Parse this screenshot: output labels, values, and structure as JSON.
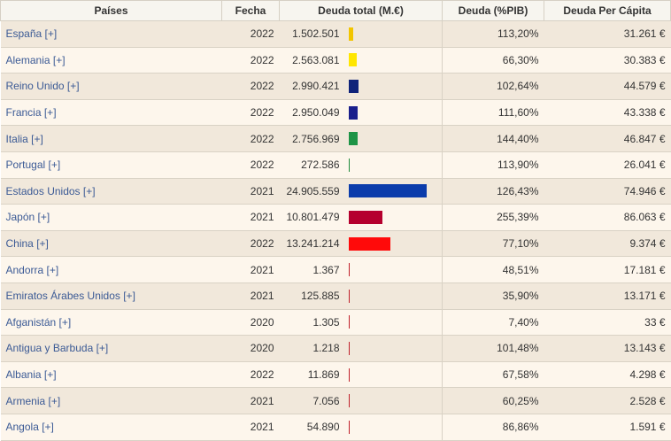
{
  "table": {
    "headers": [
      "Países",
      "Fecha",
      "Deuda total (M.€)",
      "Deuda (%PIB)",
      "Deuda Per Cápita"
    ],
    "max_debt": 24905.559,
    "rows": [
      {
        "country": "España [+]",
        "year": "2022",
        "debt": "1.502.501",
        "debt_value": 1502.501,
        "bar_color": "#f2c500",
        "gdp_pct": "113,20%",
        "per_capita": "31.261 €"
      },
      {
        "country": "Alemania [+]",
        "year": "2022",
        "debt": "2.563.081",
        "debt_value": 2563.081,
        "bar_color": "#ffe600",
        "gdp_pct": "66,30%",
        "per_capita": "30.383 €"
      },
      {
        "country": "Reino Unido [+]",
        "year": "2022",
        "debt": "2.990.421",
        "debt_value": 2990.421,
        "bar_color": "#0f237a",
        "gdp_pct": "102,64%",
        "per_capita": "44.579 €"
      },
      {
        "country": "Francia [+]",
        "year": "2022",
        "debt": "2.950.049",
        "debt_value": 2950.049,
        "bar_color": "#1a1f8c",
        "gdp_pct": "111,60%",
        "per_capita": "43.338 €"
      },
      {
        "country": "Italia [+]",
        "year": "2022",
        "debt": "2.756.969",
        "debt_value": 2756.969,
        "bar_color": "#1e9446",
        "gdp_pct": "144,40%",
        "per_capita": "46.847 €"
      },
      {
        "country": "Portugal [+]",
        "year": "2022",
        "debt": "272.586",
        "debt_value": 272.586,
        "bar_color": "#1e8a3a",
        "gdp_pct": "113,90%",
        "per_capita": "26.041 €"
      },
      {
        "country": "Estados Unidos [+]",
        "year": "2021",
        "debt": "24.905.559",
        "debt_value": 24905.559,
        "bar_color": "#0b3cab",
        "gdp_pct": "126,43%",
        "per_capita": "74.946 €"
      },
      {
        "country": "Japón [+]",
        "year": "2021",
        "debt": "10.801.479",
        "debt_value": 10801.479,
        "bar_color": "#b5002e",
        "gdp_pct": "255,39%",
        "per_capita": "86.063 €"
      },
      {
        "country": "China [+]",
        "year": "2022",
        "debt": "13.241.214",
        "debt_value": 13241.214,
        "bar_color": "#ff0a0a",
        "gdp_pct": "77,10%",
        "per_capita": "9.374 €"
      },
      {
        "country": "Andorra [+]",
        "year": "2021",
        "debt": "1.367",
        "debt_value": 1.367,
        "bar_color": "#c0202a",
        "gdp_pct": "48,51%",
        "per_capita": "17.181 €"
      },
      {
        "country": "Emiratos Árabes Unidos [+]",
        "year": "2021",
        "debt": "125.885",
        "debt_value": 125.885,
        "bar_color": "#c0202a",
        "gdp_pct": "35,90%",
        "per_capita": "13.171 €"
      },
      {
        "country": "Afganistán [+]",
        "year": "2020",
        "debt": "1.305",
        "debt_value": 1.305,
        "bar_color": "#c0202a",
        "gdp_pct": "7,40%",
        "per_capita": "33 €"
      },
      {
        "country": "Antigua y Barbuda [+]",
        "year": "2020",
        "debt": "1.218",
        "debt_value": 1.218,
        "bar_color": "#c0202a",
        "gdp_pct": "101,48%",
        "per_capita": "13.143 €"
      },
      {
        "country": "Albania [+]",
        "year": "2022",
        "debt": "11.869",
        "debt_value": 11.869,
        "bar_color": "#c0202a",
        "gdp_pct": "67,58%",
        "per_capita": "4.298 €"
      },
      {
        "country": "Armenia [+]",
        "year": "2021",
        "debt": "7.056",
        "debt_value": 7.056,
        "bar_color": "#c0202a",
        "gdp_pct": "60,25%",
        "per_capita": "2.528 €"
      },
      {
        "country": "Angola [+]",
        "year": "2021",
        "debt": "54.890",
        "debt_value": 54.89,
        "bar_color": "#c0202a",
        "gdp_pct": "86,86%",
        "per_capita": "1.591 €"
      }
    ]
  }
}
